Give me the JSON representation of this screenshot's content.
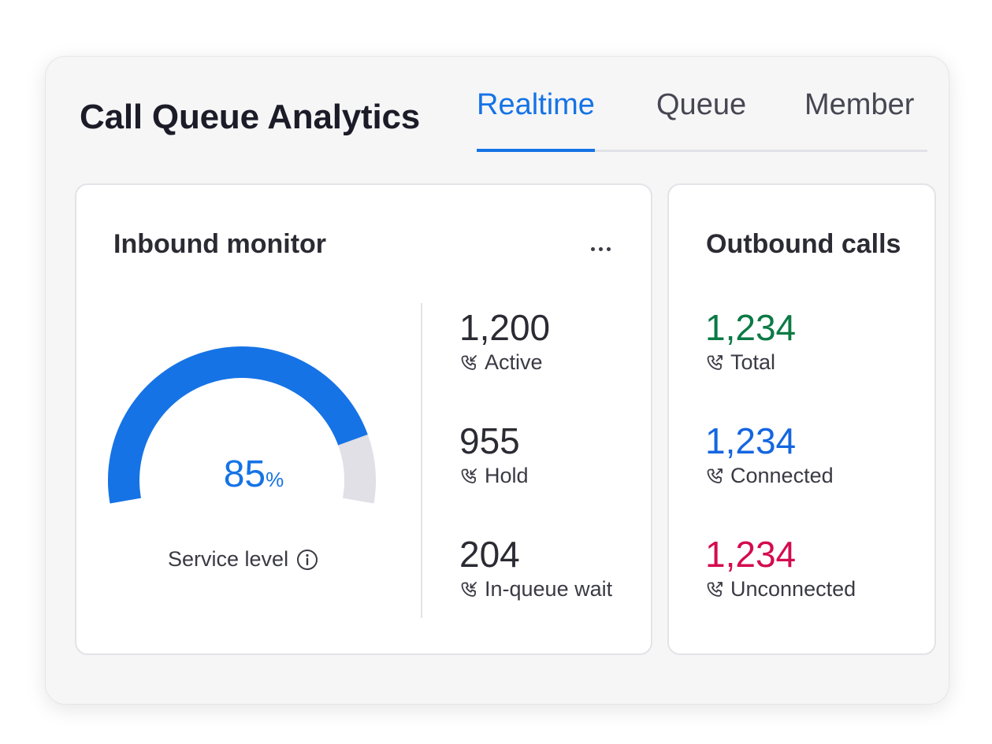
{
  "header": {
    "title": "Call Queue Analytics",
    "tabs": [
      {
        "label": "Realtime",
        "active": true
      },
      {
        "label": "Queue",
        "active": false
      },
      {
        "label": "Member",
        "active": false
      }
    ]
  },
  "inbound": {
    "title": "Inbound monitor",
    "more_icon": "more-horizontal-icon",
    "gauge": {
      "value": "85",
      "unit": "%",
      "fraction": 0.85,
      "label": "Service level",
      "info_icon": "info-icon",
      "fill_color": "#1573e6",
      "track_color": "#e0e0e6"
    },
    "stats": [
      {
        "value": "1,200",
        "label": "Active",
        "icon": "incoming-call-icon"
      },
      {
        "value": "955",
        "label": "Hold",
        "icon": "incoming-call-icon"
      },
      {
        "value": "204",
        "label": "In-queue wait",
        "icon": "incoming-call-icon"
      }
    ]
  },
  "outbound": {
    "title": "Outbound calls",
    "stats": [
      {
        "value": "1,234",
        "label": "Total",
        "color": "#0b7a45",
        "icon": "outgoing-call-icon"
      },
      {
        "value": "1,234",
        "label": "Connected",
        "color": "#1566e0",
        "icon": "outgoing-call-icon"
      },
      {
        "value": "1,234",
        "label": "Unconnected",
        "color": "#d40b4f",
        "icon": "outgoing-call-icon"
      }
    ]
  },
  "colors": {
    "accent": "#1573e6",
    "text_primary": "#2b2b33"
  }
}
